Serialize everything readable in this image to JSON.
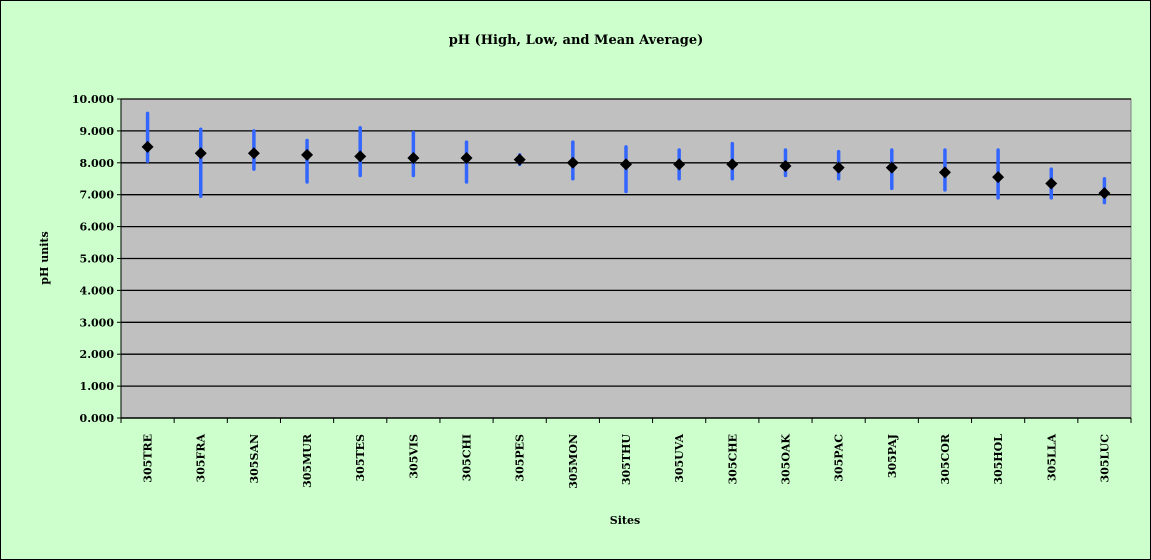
{
  "chart_data": {
    "type": "scatter",
    "title": "pH (High, Low, and Mean Average)",
    "xlabel": "Sites",
    "ylabel": "pH units",
    "ylim": [
      0,
      10
    ],
    "yticks": [
      "0.000",
      "1.000",
      "2.000",
      "3.000",
      "4.000",
      "5.000",
      "6.000",
      "7.000",
      "8.000",
      "9.000",
      "10.000"
    ],
    "grid": true,
    "categories": [
      "305TRE",
      "305FRA",
      "305SAN",
      "305MUR",
      "305TES",
      "305VIS",
      "305CHI",
      "305PES",
      "305MON",
      "305THU",
      "305UVA",
      "305CHE",
      "305OAK",
      "305PAC",
      "305PAJ",
      "305COR",
      "305HOL",
      "305LLA",
      "305LUC"
    ],
    "series": [
      {
        "values": [
          8.5,
          8.3,
          8.3,
          8.25,
          8.2,
          8.15,
          8.15,
          8.1,
          8.0,
          7.95,
          7.95,
          7.95,
          7.9,
          7.85,
          7.85,
          7.7,
          7.55,
          7.35,
          7.05
        ]
      }
    ],
    "high": [
      9.55,
      9.05,
      9.0,
      8.7,
      9.1,
      8.95,
      8.65,
      8.25,
      8.65,
      8.5,
      8.4,
      8.6,
      8.4,
      8.35,
      8.4,
      8.4,
      8.4,
      7.8,
      7.5
    ],
    "low": [
      8.05,
      6.95,
      7.8,
      7.4,
      7.6,
      7.6,
      7.4,
      7.95,
      7.5,
      7.1,
      7.5,
      7.5,
      7.6,
      7.5,
      7.2,
      7.15,
      6.9,
      6.9,
      6.75
    ],
    "colors": {
      "background": "#ccffcc",
      "plot_area": "#c0c0c0",
      "range_bar": "#3366ff",
      "mean_marker": "#000000"
    }
  }
}
